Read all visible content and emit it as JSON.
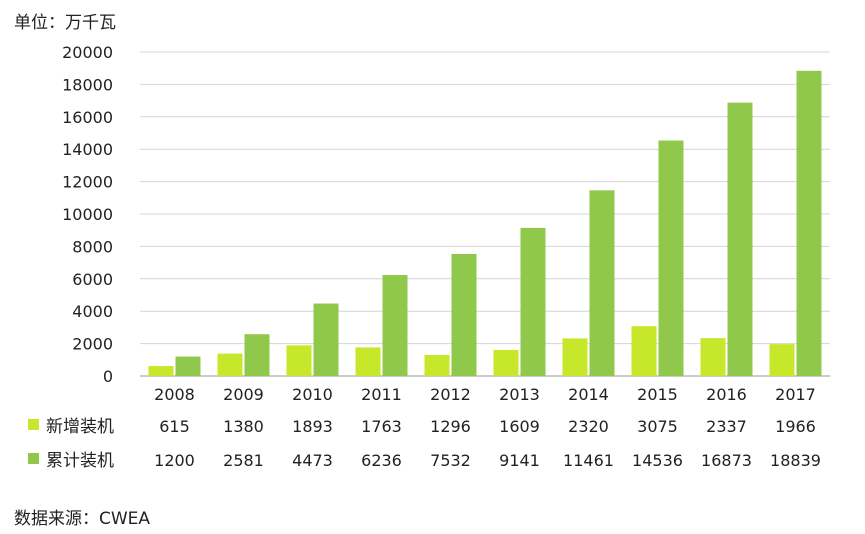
{
  "unit_label": "单位：万千瓦",
  "source_label": "数据来源：CWEA",
  "colors": {
    "new": "#c7e82a",
    "cumulative": "#8fc84a",
    "grid": "#d4d4d4"
  },
  "chart_data": {
    "type": "bar",
    "categories": [
      "2008",
      "2009",
      "2010",
      "2011",
      "2012",
      "2013",
      "2014",
      "2015",
      "2016",
      "2017"
    ],
    "series": [
      {
        "name": "新增装机",
        "values": [
          615,
          1380,
          1893,
          1763,
          1296,
          1609,
          2320,
          3075,
          2337,
          1966
        ]
      },
      {
        "name": "累计装机",
        "values": [
          1200,
          2581,
          4473,
          6236,
          7532,
          9141,
          11461,
          14536,
          16873,
          18839
        ]
      }
    ],
    "ylim": [
      0,
      20000
    ],
    "yticks": [
      0,
      2000,
      4000,
      6000,
      8000,
      10000,
      12000,
      14000,
      16000,
      18000,
      20000
    ],
    "grid": true,
    "data_table": true
  }
}
